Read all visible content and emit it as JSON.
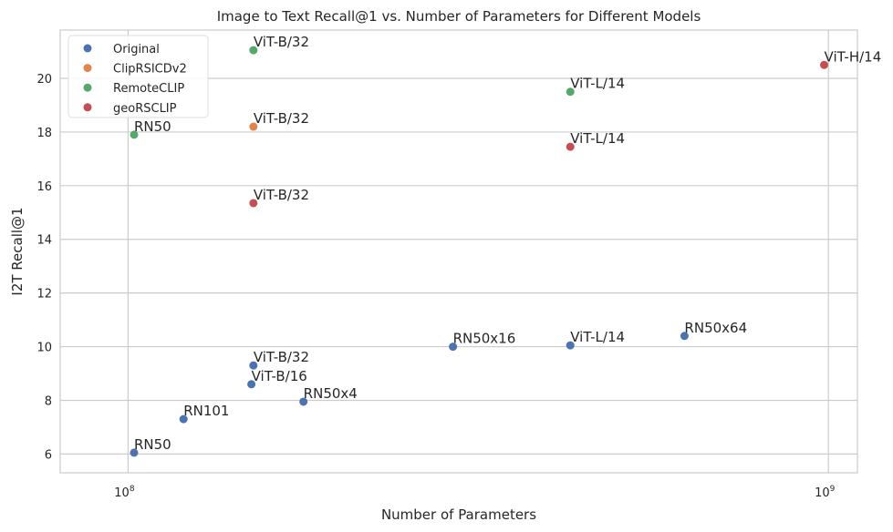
{
  "chart_data": {
    "type": "scatter",
    "title": "Image to Text Recall@1 vs. Number of Parameters for Different Models",
    "xlabel": "Number of Parameters",
    "ylabel": "I2T Recall@1",
    "xscale": "log",
    "xlim": [
      80000000,
      1100000000
    ],
    "ylim": [
      5.3,
      21.8
    ],
    "x_ticks": [
      {
        "value": 100000000,
        "base": "10",
        "exp": "8"
      },
      {
        "value": 1000000000,
        "base": "10",
        "exp": "9"
      }
    ],
    "y_ticks": [
      6,
      8,
      10,
      12,
      14,
      16,
      18,
      20
    ],
    "grid": true,
    "legend_position": "top-left",
    "series": [
      {
        "name": "Original",
        "color": "#4c72b0",
        "points": [
          {
            "label": "RN50",
            "x": 102000000,
            "y": 6.05
          },
          {
            "label": "RN101",
            "x": 120000000,
            "y": 7.3
          },
          {
            "label": "ViT-B/16",
            "x": 150000000,
            "y": 8.6
          },
          {
            "label": "ViT-B/32",
            "x": 151000000,
            "y": 9.3
          },
          {
            "label": "RN50x4",
            "x": 178000000,
            "y": 7.95
          },
          {
            "label": "RN50x16",
            "x": 291000000,
            "y": 10.0
          },
          {
            "label": "ViT-L/14",
            "x": 428000000,
            "y": 10.05
          },
          {
            "label": "RN50x64",
            "x": 623000000,
            "y": 10.4
          }
        ]
      },
      {
        "name": "ClipRSICDv2",
        "color": "#dd8452",
        "points": [
          {
            "label": "ViT-B/32",
            "x": 151000000,
            "y": 18.2
          }
        ]
      },
      {
        "name": "RemoteCLIP",
        "color": "#55a868",
        "points": [
          {
            "label": "RN50",
            "x": 102000000,
            "y": 17.9
          },
          {
            "label": "ViT-B/32",
            "x": 151000000,
            "y": 21.05
          },
          {
            "label": "ViT-L/14",
            "x": 428000000,
            "y": 19.5
          }
        ]
      },
      {
        "name": "geoRSCLIP",
        "color": "#c44e52",
        "points": [
          {
            "label": "ViT-B/32",
            "x": 151000000,
            "y": 15.35
          },
          {
            "label": "ViT-L/14",
            "x": 428000000,
            "y": 17.45
          },
          {
            "label": "ViT-H/14",
            "x": 986000000,
            "y": 20.5
          }
        ]
      }
    ]
  }
}
